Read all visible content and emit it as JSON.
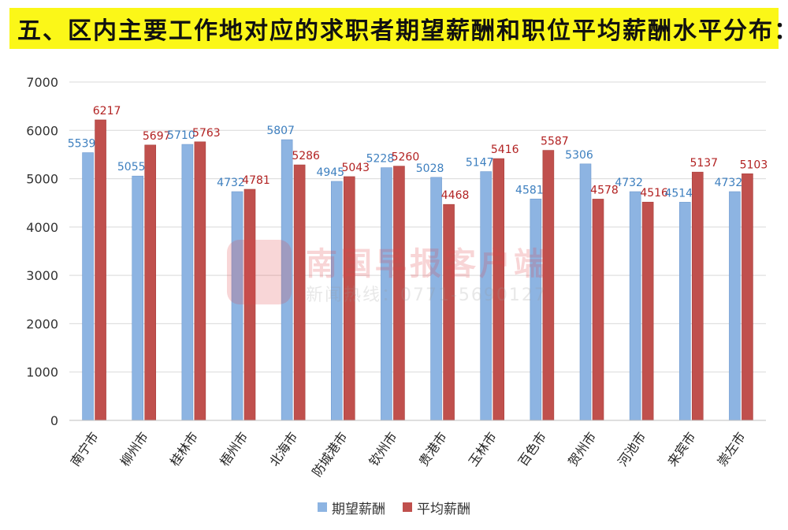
{
  "header": {
    "title": "五、区内主要工作地对应的求职者期望薪酬和职位平均薪酬水平分布："
  },
  "watermark": {
    "main": "南国早报客户端",
    "sub": "新闻热线：0771-5690127"
  },
  "colors": {
    "title_band": "#fbf718",
    "series_expected": "#8db4e2",
    "series_average": "#c0504d",
    "label_expected": "#3d7fbf",
    "label_average": "#b22222",
    "grid": "#d9d9d9"
  },
  "chart_data": {
    "type": "bar",
    "categories": [
      "南宁市",
      "柳州市",
      "桂林市",
      "梧州市",
      "北海市",
      "防城港市",
      "钦州市",
      "贵港市",
      "玉林市",
      "百色市",
      "贺州市",
      "河池市",
      "来宾市",
      "崇左市"
    ],
    "series": [
      {
        "name": "期望薪酬",
        "values": [
          5539,
          5055,
          5710,
          4732,
          5807,
          4945,
          5228,
          5028,
          5147,
          4581,
          5306,
          4732,
          4514,
          4732
        ]
      },
      {
        "name": "平均薪酬",
        "values": [
          6217,
          5697,
          5763,
          4781,
          5286,
          5043,
          5260,
          4468,
          5416,
          5587,
          4578,
          4516,
          5137,
          5103
        ]
      }
    ],
    "yticks": [
      0,
      1000,
      2000,
      3000,
      4000,
      5000,
      6000,
      7000
    ],
    "ylim": [
      0,
      7000
    ],
    "grid": true,
    "legend_position": "bottom"
  }
}
